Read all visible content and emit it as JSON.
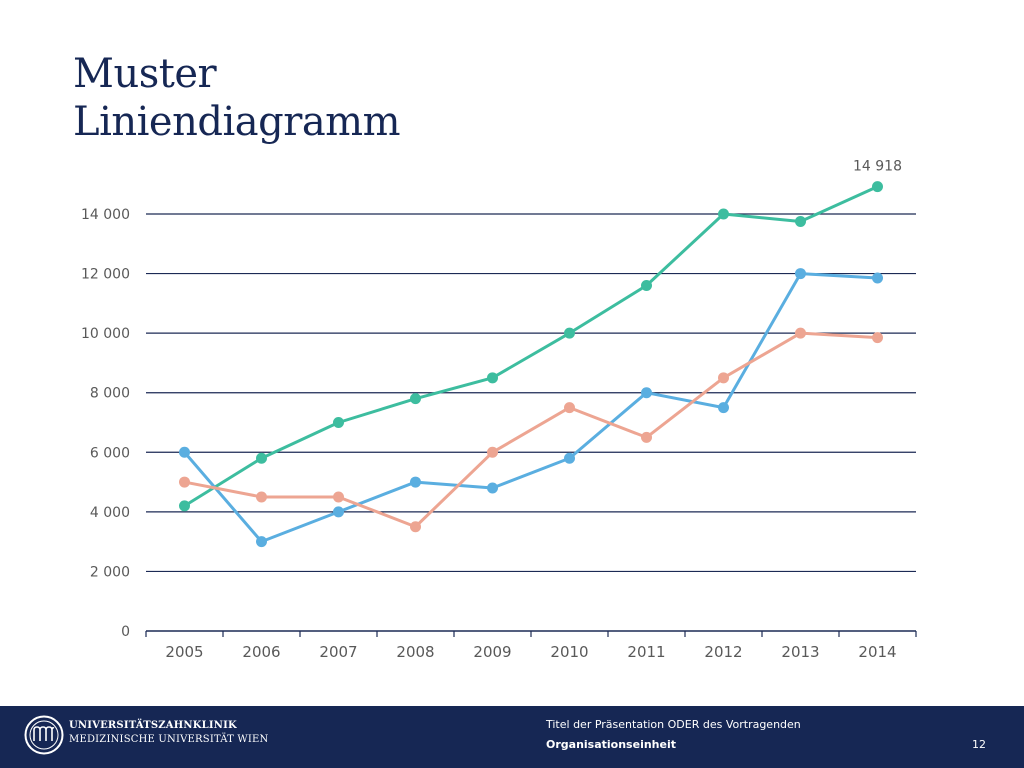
{
  "slide": {
    "title_line1": "Muster",
    "title_line2": "Liniendiagramm"
  },
  "footer": {
    "logo_line1": "UNIVERSITÄTSZAHNKLINIK",
    "logo_line2": "MEDIZINISCHE UNIVERSITÄT WIEN",
    "presentation_title": "Titel der Präsentation ODER des Vortragenden",
    "organisation_unit": "Organisationseinheit",
    "page_number": "12",
    "logo_icon": "university-seal-icon"
  },
  "colors": {
    "title": "#162754",
    "gridline": "#1c2a55",
    "axis_text": "#595959",
    "footer_bg": "#162754",
    "series_green": "#3dbd9f",
    "series_blue": "#5aaee0",
    "series_salmon": "#eda592"
  },
  "chart_data": {
    "type": "line",
    "categories": [
      "2005",
      "2006",
      "2007",
      "2008",
      "2009",
      "2010",
      "2011",
      "2012",
      "2013",
      "2014"
    ],
    "y_tick_labels": [
      "0",
      "2 000",
      "4 000",
      "6 000",
      "8 000",
      "10 000",
      "12 000",
      "14 000"
    ],
    "ylim": [
      0,
      14000
    ],
    "grid": true,
    "legend": "none",
    "series": [
      {
        "color": "#3dbd9f",
        "values": [
          4200,
          5800,
          7000,
          7800,
          8500,
          10000,
          11600,
          14000,
          13750,
          14918
        ]
      },
      {
        "color": "#5aaee0",
        "values": [
          6000,
          3000,
          4000,
          5000,
          4800,
          5800,
          8000,
          7500,
          12000,
          11850
        ]
      },
      {
        "color": "#eda592",
        "values": [
          5000,
          4500,
          4500,
          3500,
          6000,
          7500,
          6500,
          8500,
          10000,
          9850
        ]
      }
    ],
    "annotations": [
      {
        "series": 0,
        "category": "2014",
        "text": "14 918"
      }
    ]
  }
}
